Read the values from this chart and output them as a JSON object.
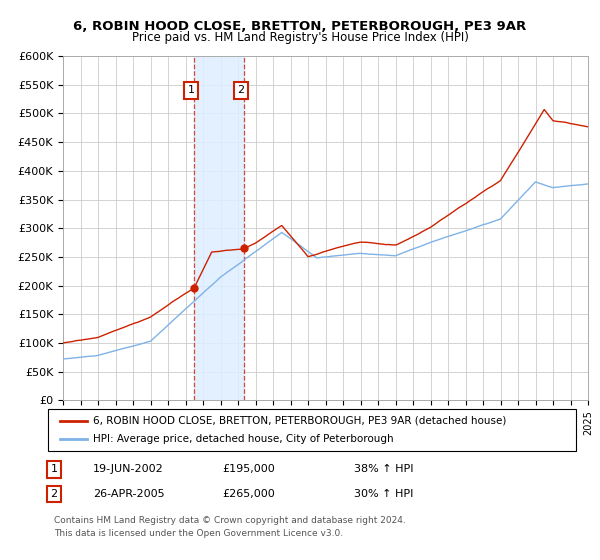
{
  "title": "6, ROBIN HOOD CLOSE, BRETTON, PETERBOROUGH, PE3 9AR",
  "subtitle": "Price paid vs. HM Land Registry's House Price Index (HPI)",
  "ylabel_ticks": [
    "£0",
    "£50K",
    "£100K",
    "£150K",
    "£200K",
    "£250K",
    "£300K",
    "£350K",
    "£400K",
    "£450K",
    "£500K",
    "£550K",
    "£600K"
  ],
  "ytick_values": [
    0,
    50000,
    100000,
    150000,
    200000,
    250000,
    300000,
    350000,
    400000,
    450000,
    500000,
    550000,
    600000
  ],
  "xlim_years": [
    1995,
    2025
  ],
  "ylim": [
    0,
    600000
  ],
  "sale1_date": "19-JUN-2002",
  "sale1_year": 2002.46,
  "sale1_price": 195000,
  "sale1_label": "1",
  "sale1_pct": "38% ↑ HPI",
  "sale2_date": "26-APR-2005",
  "sale2_year": 2005.32,
  "sale2_price": 265000,
  "sale2_label": "2",
  "sale2_pct": "30% ↑ HPI",
  "legend_line1": "6, ROBIN HOOD CLOSE, BRETTON, PETERBOROUGH, PE3 9AR (detached house)",
  "legend_line2": "HPI: Average price, detached house, City of Peterborough",
  "footnote1": "Contains HM Land Registry data © Crown copyright and database right 2024.",
  "footnote2": "This data is licensed under the Open Government Licence v3.0.",
  "hpi_color": "#7fb3e8",
  "price_color": "#cc2200",
  "shade_color": "#ddeeff",
  "box_color": "#cc2200",
  "background_color": "#ffffff",
  "grid_color": "#cccccc"
}
